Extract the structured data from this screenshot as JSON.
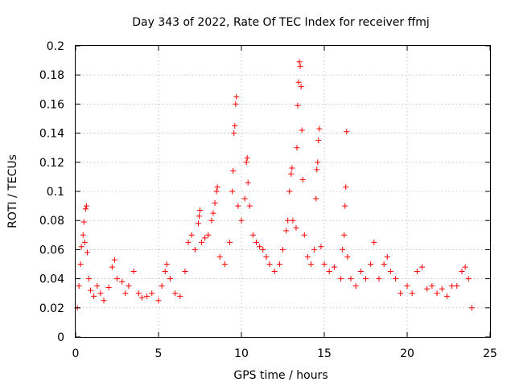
{
  "chart_data": {
    "type": "scatter",
    "title": "Day 343 of 2022, Rate Of TEC Index for receiver ffmj",
    "xlabel": "GPS time / hours",
    "ylabel": "ROTI / TECUs",
    "xlim": [
      0,
      25
    ],
    "ylim": [
      0,
      0.2
    ],
    "xticks": [
      "0",
      "5",
      "10",
      "15",
      "20",
      "25"
    ],
    "yticks": [
      "0",
      "0.02",
      "0.04",
      "0.06",
      "0.08",
      "0.1",
      "0.12",
      "0.14",
      "0.16",
      "0.18",
      "0.2"
    ],
    "grid": true,
    "marker": "+",
    "color": "#ff0000",
    "series": [
      {
        "values": [
          [
            0.1,
            0.02
          ],
          [
            0.2,
            0.035
          ],
          [
            0.3,
            0.05
          ],
          [
            0.35,
            0.062
          ],
          [
            0.45,
            0.07
          ],
          [
            0.5,
            0.079
          ],
          [
            0.55,
            0.065
          ],
          [
            0.6,
            0.088
          ],
          [
            0.65,
            0.09
          ],
          [
            0.7,
            0.058
          ],
          [
            0.8,
            0.04
          ],
          [
            0.9,
            0.032
          ],
          [
            1.1,
            0.028
          ],
          [
            1.3,
            0.035
          ],
          [
            1.5,
            0.03
          ],
          [
            1.7,
            0.025
          ],
          [
            2.0,
            0.034
          ],
          [
            2.2,
            0.048
          ],
          [
            2.35,
            0.053
          ],
          [
            2.5,
            0.04
          ],
          [
            2.8,
            0.038
          ],
          [
            3.0,
            0.03
          ],
          [
            3.2,
            0.035
          ],
          [
            3.5,
            0.045
          ],
          [
            3.8,
            0.03
          ],
          [
            4.0,
            0.027
          ],
          [
            4.3,
            0.028
          ],
          [
            4.6,
            0.03
          ],
          [
            5.0,
            0.025
          ],
          [
            5.2,
            0.035
          ],
          [
            5.4,
            0.045
          ],
          [
            5.5,
            0.05
          ],
          [
            5.7,
            0.04
          ],
          [
            6.0,
            0.03
          ],
          [
            6.3,
            0.028
          ],
          [
            6.6,
            0.045
          ],
          [
            6.8,
            0.065
          ],
          [
            7.0,
            0.07
          ],
          [
            7.2,
            0.06
          ],
          [
            7.4,
            0.078
          ],
          [
            7.45,
            0.083
          ],
          [
            7.5,
            0.087
          ],
          [
            7.6,
            0.065
          ],
          [
            7.8,
            0.068
          ],
          [
            8.0,
            0.07
          ],
          [
            8.2,
            0.08
          ],
          [
            8.3,
            0.085
          ],
          [
            8.4,
            0.092
          ],
          [
            8.5,
            0.1
          ],
          [
            8.55,
            0.103
          ],
          [
            8.7,
            0.055
          ],
          [
            9.0,
            0.05
          ],
          [
            9.3,
            0.065
          ],
          [
            9.45,
            0.1
          ],
          [
            9.5,
            0.114
          ],
          [
            9.55,
            0.14
          ],
          [
            9.6,
            0.145
          ],
          [
            9.65,
            0.16
          ],
          [
            9.7,
            0.165
          ],
          [
            9.8,
            0.09
          ],
          [
            10.0,
            0.08
          ],
          [
            10.2,
            0.095
          ],
          [
            10.3,
            0.12
          ],
          [
            10.35,
            0.123
          ],
          [
            10.4,
            0.106
          ],
          [
            10.5,
            0.09
          ],
          [
            10.7,
            0.07
          ],
          [
            10.9,
            0.065
          ],
          [
            11.1,
            0.062
          ],
          [
            11.3,
            0.06
          ],
          [
            11.5,
            0.055
          ],
          [
            11.7,
            0.05
          ],
          [
            12.0,
            0.045
          ],
          [
            12.3,
            0.05
          ],
          [
            12.5,
            0.06
          ],
          [
            12.7,
            0.073
          ],
          [
            12.8,
            0.08
          ],
          [
            12.9,
            0.1
          ],
          [
            13.0,
            0.112
          ],
          [
            13.05,
            0.116
          ],
          [
            13.1,
            0.08
          ],
          [
            13.3,
            0.075
          ],
          [
            13.35,
            0.13
          ],
          [
            13.4,
            0.159
          ],
          [
            13.45,
            0.175
          ],
          [
            13.5,
            0.189
          ],
          [
            13.55,
            0.186
          ],
          [
            13.6,
            0.172
          ],
          [
            13.65,
            0.142
          ],
          [
            13.7,
            0.108
          ],
          [
            13.8,
            0.07
          ],
          [
            14.0,
            0.055
          ],
          [
            14.2,
            0.05
          ],
          [
            14.4,
            0.06
          ],
          [
            14.5,
            0.095
          ],
          [
            14.55,
            0.115
          ],
          [
            14.6,
            0.12
          ],
          [
            14.65,
            0.135
          ],
          [
            14.7,
            0.143
          ],
          [
            14.8,
            0.062
          ],
          [
            15.0,
            0.05
          ],
          [
            15.3,
            0.045
          ],
          [
            15.6,
            0.048
          ],
          [
            16.0,
            0.04
          ],
          [
            16.1,
            0.06
          ],
          [
            16.2,
            0.07
          ],
          [
            16.25,
            0.09
          ],
          [
            16.3,
            0.103
          ],
          [
            16.35,
            0.141
          ],
          [
            16.4,
            0.055
          ],
          [
            16.6,
            0.04
          ],
          [
            16.9,
            0.035
          ],
          [
            17.2,
            0.045
          ],
          [
            17.5,
            0.04
          ],
          [
            17.8,
            0.05
          ],
          [
            18.0,
            0.065
          ],
          [
            18.3,
            0.04
          ],
          [
            18.6,
            0.05
          ],
          [
            18.8,
            0.055
          ],
          [
            19.0,
            0.045
          ],
          [
            19.3,
            0.04
          ],
          [
            19.6,
            0.03
          ],
          [
            20.0,
            0.035
          ],
          [
            20.3,
            0.03
          ],
          [
            20.6,
            0.045
          ],
          [
            20.9,
            0.048
          ],
          [
            21.2,
            0.033
          ],
          [
            21.5,
            0.035
          ],
          [
            21.8,
            0.03
          ],
          [
            22.1,
            0.033
          ],
          [
            22.4,
            0.028
          ],
          [
            22.7,
            0.035
          ],
          [
            23.0,
            0.035
          ],
          [
            23.3,
            0.045
          ],
          [
            23.5,
            0.048
          ],
          [
            23.7,
            0.04
          ],
          [
            23.9,
            0.02
          ]
        ]
      }
    ]
  }
}
